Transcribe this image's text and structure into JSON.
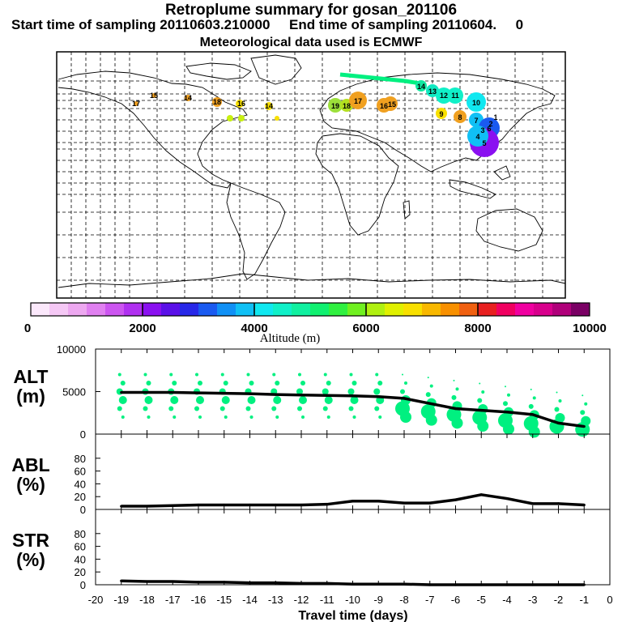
{
  "header": {
    "title": "Retroplume summary for gosan_201106",
    "subtitle": "Start time of sampling 20110603.210000     End time of sampling 20110604.     0",
    "met": "Meteorological data used is ECMWF"
  },
  "colors": {
    "line": "#000000",
    "dots": "#00f080",
    "colorbar": [
      "#fbe8fb",
      "#f5c8f5",
      "#eda8f0",
      "#e080f0",
      "#cc55f0",
      "#b030f0",
      "#8a10f0",
      "#5a10e8",
      "#2828e8",
      "#1a5af0",
      "#1090f5",
      "#10c0f5",
      "#10e8f0",
      "#10f0c8",
      "#10f0a0",
      "#10f070",
      "#30f040",
      "#70f020",
      "#b0f010",
      "#e0f000",
      "#f8e000",
      "#f8b800",
      "#f89000",
      "#f06010",
      "#e82020",
      "#f00060",
      "#f000a0",
      "#d8008c",
      "#b0007a",
      "#7a0064"
    ]
  },
  "map_labels": [
    "19",
    "18",
    "17",
    "16",
    "15",
    "14",
    "13",
    "12",
    "11",
    "10",
    "9",
    "8",
    "7",
    "6",
    "5",
    "4",
    "3",
    "2",
    "1",
    "17",
    "15",
    "14",
    "18",
    "16",
    "14"
  ],
  "colorbar_axis": {
    "label": "Altitude (m)",
    "ticks": [
      "0",
      "2000",
      "4000",
      "6000",
      "8000",
      "10000"
    ]
  },
  "chart_data": [
    {
      "type": "line",
      "panel": "ALT",
      "ylabel": "ALT",
      "yunit": "(m)",
      "ylim": [
        0,
        10000
      ],
      "yticks": [
        "10000",
        "5000",
        "0"
      ],
      "x": [
        -19,
        -18,
        -17,
        -16,
        -15,
        -14,
        -13,
        -12,
        -11,
        -10,
        -9,
        -8,
        -7,
        -6,
        -5,
        -4,
        -3,
        -2,
        -1
      ],
      "values": [
        4900,
        4900,
        4900,
        4850,
        4800,
        4750,
        4650,
        4600,
        4550,
        4500,
        4400,
        4200,
        3600,
        3000,
        2800,
        2600,
        2300,
        1300,
        900
      ]
    },
    {
      "type": "line",
      "panel": "ABL",
      "ylabel": "ABL",
      "yunit": "(%)",
      "ylim": [
        0,
        100
      ],
      "yticks": [
        "80",
        "60",
        "40",
        "20",
        "0"
      ],
      "x": [
        -19,
        -18,
        -17,
        -16,
        -15,
        -14,
        -13,
        -12,
        -11,
        -10,
        -9,
        -8,
        -7,
        -6,
        -5,
        -4,
        -3,
        -2,
        -1
      ],
      "values": [
        5,
        5,
        6,
        7,
        7,
        7,
        7,
        7,
        8,
        13,
        13,
        10,
        10,
        15,
        23,
        17,
        9,
        9,
        7
      ]
    },
    {
      "type": "line",
      "panel": "STR",
      "ylabel": "STR",
      "yunit": "(%)",
      "ylim": [
        0,
        100
      ],
      "yticks": [
        "80",
        "60",
        "40",
        "20",
        "0"
      ],
      "x": [
        -19,
        -18,
        -17,
        -16,
        -15,
        -14,
        -13,
        -12,
        -11,
        -10,
        -9,
        -8,
        -7,
        -6,
        -5,
        -4,
        -3,
        -2,
        -1
      ],
      "values": [
        6,
        5,
        5,
        4,
        4,
        3,
        3,
        2,
        2,
        1,
        1,
        1,
        0,
        0,
        0,
        0,
        0,
        0,
        0
      ]
    }
  ],
  "xaxis": {
    "label": "Travel time (days)",
    "ticks": [
      "-20",
      "-19",
      "-18",
      "-17",
      "-16",
      "-15",
      "-14",
      "-13",
      "-12",
      "-11",
      "-10",
      "-9",
      "-8",
      "-7",
      "-6",
      "-5",
      "-4",
      "-3",
      "-2",
      "-1",
      "0"
    ]
  }
}
